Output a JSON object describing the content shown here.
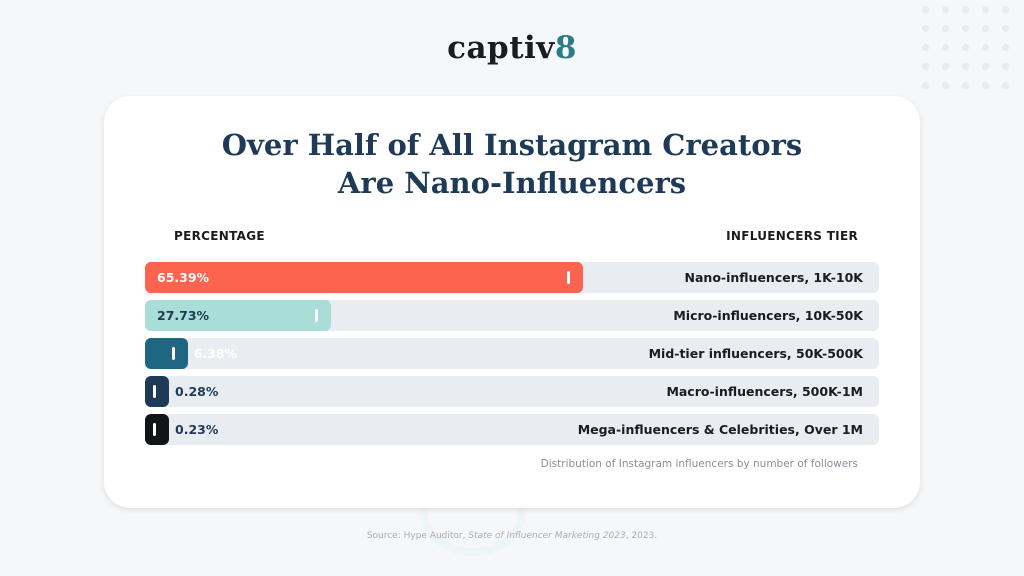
{
  "brand": {
    "logo_text": "captiv",
    "logo_suffix": "8"
  },
  "title_line1": "Over Half of All Instagram Creators",
  "title_line2": "Are Nano-Influencers",
  "headers": {
    "left": "PERCENTAGE",
    "right": "INFLUENCERS TIER"
  },
  "caption": "Distribution of Instagram influencers by number of followers",
  "source": {
    "prefix": "Source: Hype Auditor, ",
    "title": "State of Influencer Marketing 2023",
    "suffix": ", 2023."
  },
  "colors": {
    "title": "#1e3a57",
    "track": "#e9ecf1",
    "nano": "#fd644f",
    "micro": "#a9ddd7",
    "mid": "#1f6682",
    "macro": "#1e3a57",
    "mega": "#111418"
  },
  "chart_data": {
    "type": "bar",
    "orientation": "horizontal",
    "categories": [
      "Nano-influencers, 1K-10K",
      "Micro-influencers, 10K-50K",
      "Mid-tier influencers, 50K-500K",
      "Macro-influencers, 500K-1M",
      "Mega-influencers & Celebrities, Over 1M"
    ],
    "values": [
      65.39,
      27.73,
      6.38,
      0.28,
      0.23
    ],
    "labels": [
      "65.39%",
      "27.73%",
      "6.38%",
      "0.28%",
      "0.23%"
    ],
    "bar_colors": [
      "#fd644f",
      "#a9ddd7",
      "#1f6682",
      "#1e3a57",
      "#111418"
    ],
    "label_colors": [
      "#ffffff",
      "#1e3a57",
      "#ffffff",
      "#1e3a57",
      "#1e3a57"
    ],
    "xlim": [
      0,
      100
    ],
    "grid": false,
    "legend": "none"
  }
}
